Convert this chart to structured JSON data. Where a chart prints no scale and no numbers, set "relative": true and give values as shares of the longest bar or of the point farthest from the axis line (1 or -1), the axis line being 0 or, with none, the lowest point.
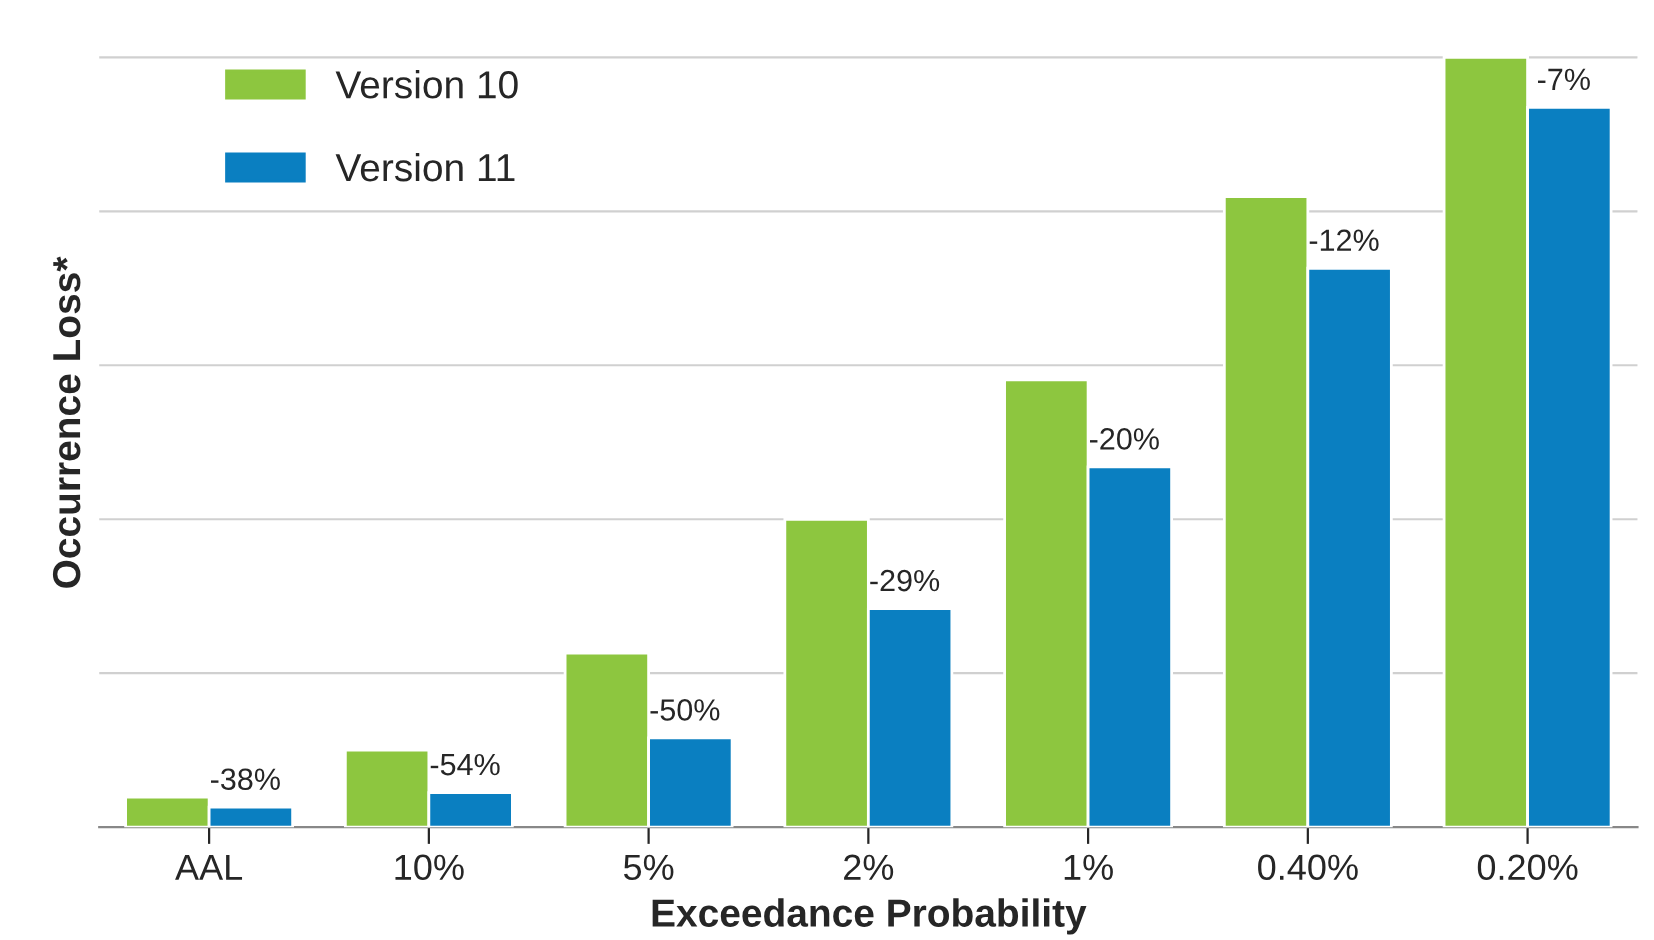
{
  "chart_data": {
    "type": "bar",
    "relative": true,
    "xlabel": "Exceedance Probability",
    "ylabel": "Occurrence Loss*",
    "categories": [
      "AAL",
      "10%",
      "5%",
      "2%",
      "1%",
      "0.40%",
      "0.20%"
    ],
    "series": [
      {
        "name": "Version 10",
        "color": "#8dc63f",
        "values": [
          0.039,
          0.1,
          0.226,
          0.4,
          0.581,
          0.819,
          1
        ]
      },
      {
        "name": "Version 11",
        "color": "#0a7fc1",
        "values": [
          0.026,
          0.045,
          0.116,
          0.284,
          0.468,
          0.726,
          0.935
        ]
      }
    ],
    "annotations": [
      {
        "text": "-38%",
        "x": "AAL",
        "y": 0.026
      },
      {
        "text": "-54%",
        "x": "10%",
        "y": 0.045
      },
      {
        "text": "-50%",
        "x": "5%",
        "y": 0.116
      },
      {
        "text": "-29%",
        "x": "2%",
        "y": 0.284
      },
      {
        "text": "-20%",
        "x": "1%",
        "y": 0.468
      },
      {
        "text": "-12%",
        "x": "0.40%",
        "y": 0.726
      },
      {
        "text": "-7%",
        "x": "0.20%",
        "y": 0.935
      }
    ],
    "grid": "y",
    "legend": "top left"
  }
}
